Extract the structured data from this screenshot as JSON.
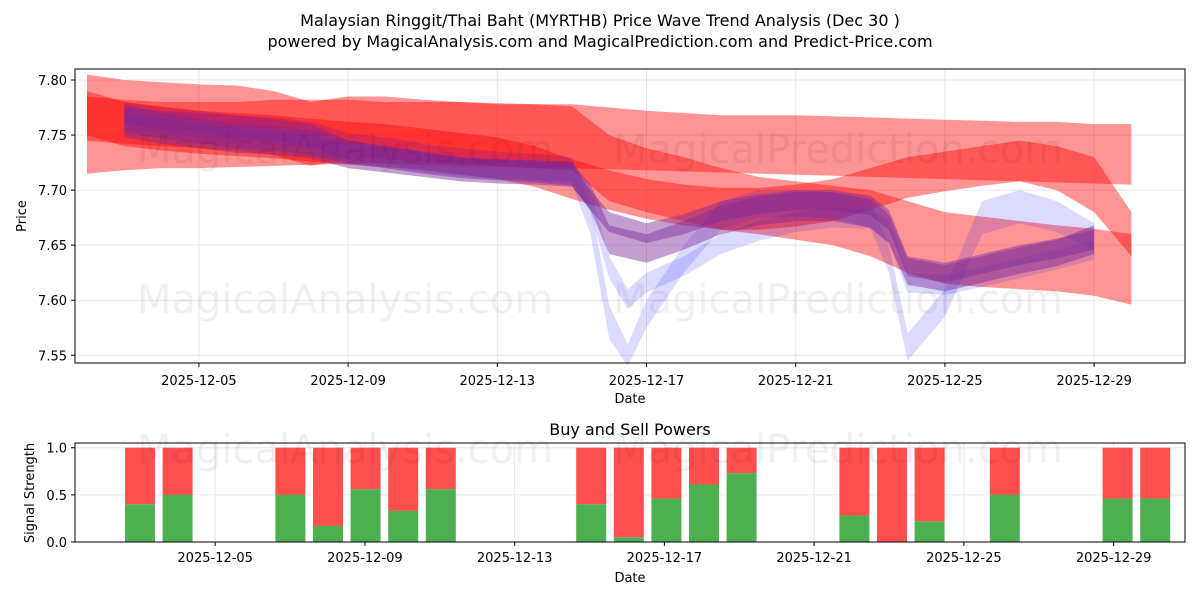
{
  "title_line1": "Malaysian Ringgit/Thai Baht (MYRTHB) Price Wave Trend Analysis (Dec 30 )",
  "title_line2": "powered by MagicalAnalysis.com and MagicalPrediction.com and Predict-Price.com",
  "watermarks": [
    "MagicalAnalysis.com",
    "MagicalPrediction.com"
  ],
  "colors": {
    "red": "#ff0000",
    "blue": "#0000ff",
    "purple": "#7a2a9a",
    "buy": "#4caf50",
    "sell": "#ff4444"
  },
  "chart_data": [
    {
      "type": "area",
      "name": "price-wave-chart",
      "xlabel": "Date",
      "ylabel": "Price",
      "ylim": [
        7.543,
        7.81
      ],
      "yticks": [
        "7.55",
        "7.60",
        "7.65",
        "7.70",
        "7.75",
        "7.80"
      ],
      "xticks": [
        "2025-12-05",
        "2025-12-09",
        "2025-12-13",
        "2025-12-17",
        "2025-12-21",
        "2025-12-25",
        "2025-12-29"
      ],
      "grid": true,
      "series": [
        {
          "name": "red-band-1",
          "color": "red",
          "x": [
            0,
            1,
            2,
            3,
            4,
            5,
            6,
            7,
            8,
            9,
            10,
            11,
            12,
            13,
            14,
            15,
            16,
            17,
            18,
            19,
            20,
            21,
            22,
            23,
            24,
            25,
            26,
            27,
            28
          ],
          "upper": [
            7.785,
            7.782,
            7.78,
            7.78,
            7.78,
            7.782,
            7.782,
            7.782,
            7.78,
            7.78,
            7.78,
            7.778,
            7.778,
            7.778,
            7.775,
            7.772,
            7.77,
            7.768,
            7.768,
            7.768,
            7.767,
            7.766,
            7.765,
            7.764,
            7.763,
            7.762,
            7.762,
            7.76,
            7.76
          ],
          "lower": [
            7.715,
            7.718,
            7.72,
            7.72,
            7.721,
            7.722,
            7.723,
            7.724,
            7.724,
            7.723,
            7.722,
            7.721,
            7.72,
            7.72,
            7.719,
            7.718,
            7.717,
            7.716,
            7.715,
            7.714,
            7.713,
            7.712,
            7.711,
            7.71,
            7.709,
            7.708,
            7.707,
            7.706,
            7.705
          ]
        },
        {
          "name": "red-band-2",
          "color": "red",
          "x": [
            0,
            1,
            2,
            3,
            4,
            5,
            6,
            7,
            8,
            9,
            10,
            11,
            12,
            13,
            14,
            15,
            16,
            17,
            18,
            19,
            20,
            21,
            22,
            23,
            24,
            25,
            26,
            27,
            28
          ],
          "upper": [
            7.805,
            7.8,
            7.798,
            7.796,
            7.795,
            7.79,
            7.78,
            7.785,
            7.785,
            7.782,
            7.78,
            7.779,
            7.778,
            7.776,
            7.75,
            7.738,
            7.73,
            7.72,
            7.712,
            7.708,
            7.704,
            7.7,
            7.69,
            7.68,
            7.676,
            7.672,
            7.668,
            7.665,
            7.66
          ],
          "lower": [
            7.745,
            7.742,
            7.74,
            7.738,
            7.736,
            7.732,
            7.722,
            7.728,
            7.728,
            7.726,
            7.724,
            7.722,
            7.72,
            7.718,
            7.69,
            7.68,
            7.672,
            7.664,
            7.66,
            7.655,
            7.65,
            7.64,
            7.625,
            7.615,
            7.612,
            7.61,
            7.608,
            7.604,
            7.596
          ]
        },
        {
          "name": "red-band-3",
          "color": "red",
          "x": [
            0,
            1,
            2,
            3,
            4,
            5,
            6,
            7,
            8,
            9,
            10,
            11,
            12,
            13,
            14,
            15,
            16,
            17,
            18,
            19,
            20,
            21,
            22,
            23,
            24,
            25,
            26,
            27,
            28
          ],
          "upper": [
            7.79,
            7.78,
            7.776,
            7.772,
            7.77,
            7.768,
            7.765,
            7.762,
            7.76,
            7.756,
            7.752,
            7.748,
            7.74,
            7.728,
            7.718,
            7.71,
            7.705,
            7.702,
            7.702,
            7.705,
            7.71,
            7.72,
            7.73,
            7.735,
            7.74,
            7.745,
            7.74,
            7.73,
            7.68
          ],
          "lower": [
            7.75,
            7.74,
            7.736,
            7.733,
            7.731,
            7.729,
            7.726,
            7.723,
            7.721,
            7.718,
            7.714,
            7.71,
            7.703,
            7.692,
            7.682,
            7.674,
            7.668,
            7.664,
            7.664,
            7.667,
            7.672,
            7.682,
            7.693,
            7.699,
            7.704,
            7.708,
            7.7,
            7.68,
            7.64
          ]
        },
        {
          "name": "blue-band-1",
          "color": "blue",
          "x": [
            1,
            2,
            3,
            4,
            5,
            6,
            7,
            8,
            9,
            10,
            11,
            12,
            13,
            13.5,
            14,
            14.5,
            15,
            16,
            17,
            18,
            19,
            20,
            21,
            21.5,
            22,
            23,
            24,
            25,
            26,
            27
          ],
          "upper": [
            7.78,
            7.775,
            7.772,
            7.768,
            7.765,
            7.76,
            7.745,
            7.74,
            7.735,
            7.73,
            7.728,
            7.727,
            7.726,
            7.7,
            7.64,
            7.61,
            7.625,
            7.64,
            7.66,
            7.672,
            7.68,
            7.684,
            7.683,
            7.672,
            7.625,
            7.623,
            7.63,
            7.638,
            7.646,
            7.655
          ],
          "lower": [
            7.76,
            7.756,
            7.753,
            7.749,
            7.745,
            7.74,
            7.725,
            7.72,
            7.716,
            7.712,
            7.71,
            7.709,
            7.708,
            7.68,
            7.62,
            7.592,
            7.607,
            7.622,
            7.642,
            7.654,
            7.662,
            7.666,
            7.665,
            7.652,
            7.607,
            7.605,
            7.612,
            7.62,
            7.628,
            7.637
          ]
        },
        {
          "name": "blue-band-2",
          "color": "blue",
          "x": [
            1,
            2,
            3,
            4,
            5,
            6,
            7,
            8,
            9,
            10,
            11,
            12,
            13,
            13.5,
            14,
            14.5,
            15,
            16,
            17,
            18,
            19,
            20,
            21,
            21.5,
            22,
            23,
            24,
            25,
            26,
            27
          ],
          "upper": [
            7.775,
            7.772,
            7.77,
            7.768,
            7.766,
            7.762,
            7.752,
            7.748,
            7.742,
            7.738,
            7.735,
            7.733,
            7.73,
            7.69,
            7.595,
            7.56,
            7.6,
            7.65,
            7.69,
            7.7,
            7.7,
            7.698,
            7.69,
            7.65,
            7.57,
            7.61,
            7.69,
            7.7,
            7.69,
            7.67
          ],
          "lower": [
            7.755,
            7.752,
            7.748,
            7.745,
            7.742,
            7.738,
            7.728,
            7.724,
            7.718,
            7.714,
            7.711,
            7.709,
            7.706,
            7.66,
            7.565,
            7.54,
            7.575,
            7.625,
            7.665,
            7.675,
            7.676,
            7.674,
            7.666,
            7.625,
            7.545,
            7.585,
            7.66,
            7.67,
            7.662,
            7.645
          ]
        },
        {
          "name": "purple-band-1",
          "color": "purple",
          "x": [
            1,
            2,
            3,
            4,
            5,
            6,
            7,
            8,
            9,
            10,
            11,
            12,
            13,
            13.5,
            14,
            15,
            16,
            17,
            18,
            19,
            20,
            21,
            21.5,
            22,
            23,
            24,
            25,
            26,
            27
          ],
          "upper": [
            7.778,
            7.77,
            7.765,
            7.76,
            7.758,
            7.755,
            7.745,
            7.74,
            7.735,
            7.73,
            7.728,
            7.727,
            7.725,
            7.705,
            7.668,
            7.66,
            7.672,
            7.686,
            7.694,
            7.698,
            7.698,
            7.692,
            7.678,
            7.638,
            7.632,
            7.64,
            7.648,
            7.655,
            7.668
          ],
          "lower": [
            7.748,
            7.742,
            7.738,
            7.734,
            7.732,
            7.729,
            7.72,
            7.716,
            7.712,
            7.708,
            7.706,
            7.705,
            7.703,
            7.682,
            7.642,
            7.634,
            7.646,
            7.66,
            7.668,
            7.672,
            7.672,
            7.666,
            7.652,
            7.614,
            7.608,
            7.616,
            7.624,
            7.631,
            7.642
          ]
        },
        {
          "name": "purple-band-2",
          "color": "purple",
          "x": [
            1,
            2,
            3,
            4,
            5,
            6,
            7,
            8,
            9,
            10,
            11,
            12,
            13,
            13.5,
            14,
            15,
            16,
            17,
            18,
            19,
            20,
            21,
            21.5,
            22,
            23,
            24,
            25,
            26,
            27
          ],
          "upper": [
            7.77,
            7.765,
            7.76,
            7.756,
            7.754,
            7.75,
            7.742,
            7.738,
            7.733,
            7.729,
            7.727,
            7.725,
            7.722,
            7.7,
            7.68,
            7.67,
            7.678,
            7.69,
            7.696,
            7.7,
            7.7,
            7.695,
            7.682,
            7.64,
            7.634,
            7.642,
            7.65,
            7.656,
            7.664
          ],
          "lower": [
            7.752,
            7.747,
            7.742,
            7.738,
            7.736,
            7.732,
            7.724,
            7.72,
            7.715,
            7.711,
            7.709,
            7.707,
            7.704,
            7.682,
            7.662,
            7.652,
            7.66,
            7.672,
            7.678,
            7.682,
            7.682,
            7.677,
            7.664,
            7.622,
            7.616,
            7.624,
            7.632,
            7.638,
            7.646
          ]
        }
      ]
    },
    {
      "type": "bar",
      "name": "buy-sell-chart",
      "title": "Buy and Sell Powers",
      "xlabel": "Date",
      "ylabel": "Signal Strength",
      "ylim": [
        0,
        1.05
      ],
      "yticks": [
        "0.0",
        "0.5",
        "1.0"
      ],
      "xticks": [
        "2025-12-05",
        "2025-12-09",
        "2025-12-13",
        "2025-12-17",
        "2025-12-21",
        "2025-12-25",
        "2025-12-29"
      ],
      "grid": true,
      "categories": [
        1,
        2,
        5,
        6,
        7,
        8,
        9,
        13,
        14,
        15,
        16,
        17,
        20,
        21,
        22,
        24,
        27,
        28
      ],
      "series": [
        {
          "name": "Buy",
          "color": "buy",
          "values": [
            0.4,
            0.5,
            0.5,
            0.17,
            0.56,
            0.33,
            0.56,
            0.4,
            0.05,
            0.46,
            0.61,
            0.73,
            0.28,
            0.0,
            0.22,
            0.5,
            0.46,
            0.46
          ]
        },
        {
          "name": "Sell",
          "color": "sell",
          "values": [
            0.6,
            0.5,
            0.5,
            0.83,
            0.44,
            0.67,
            0.44,
            0.6,
            0.95,
            0.54,
            0.39,
            0.27,
            0.72,
            1.0,
            0.78,
            0.5,
            0.54,
            0.54
          ]
        }
      ]
    }
  ]
}
